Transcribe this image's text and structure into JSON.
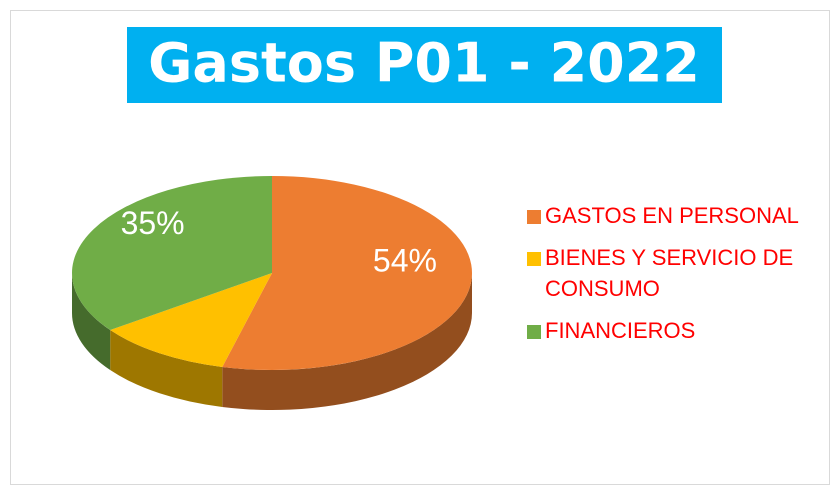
{
  "chart_data": {
    "type": "pie",
    "title": "Gastos P01 - 2022",
    "categories": [
      "GASTOS EN PERSONAL",
      "BIENES Y SERVICIO DE CONSUMO",
      "FINANCIEROS"
    ],
    "values": [
      54,
      11,
      35
    ],
    "value_labels": [
      "54%",
      null,
      "35%"
    ],
    "colors": [
      "#ed7d31",
      "#ffc000",
      "#70ad47"
    ],
    "legend": "right"
  }
}
